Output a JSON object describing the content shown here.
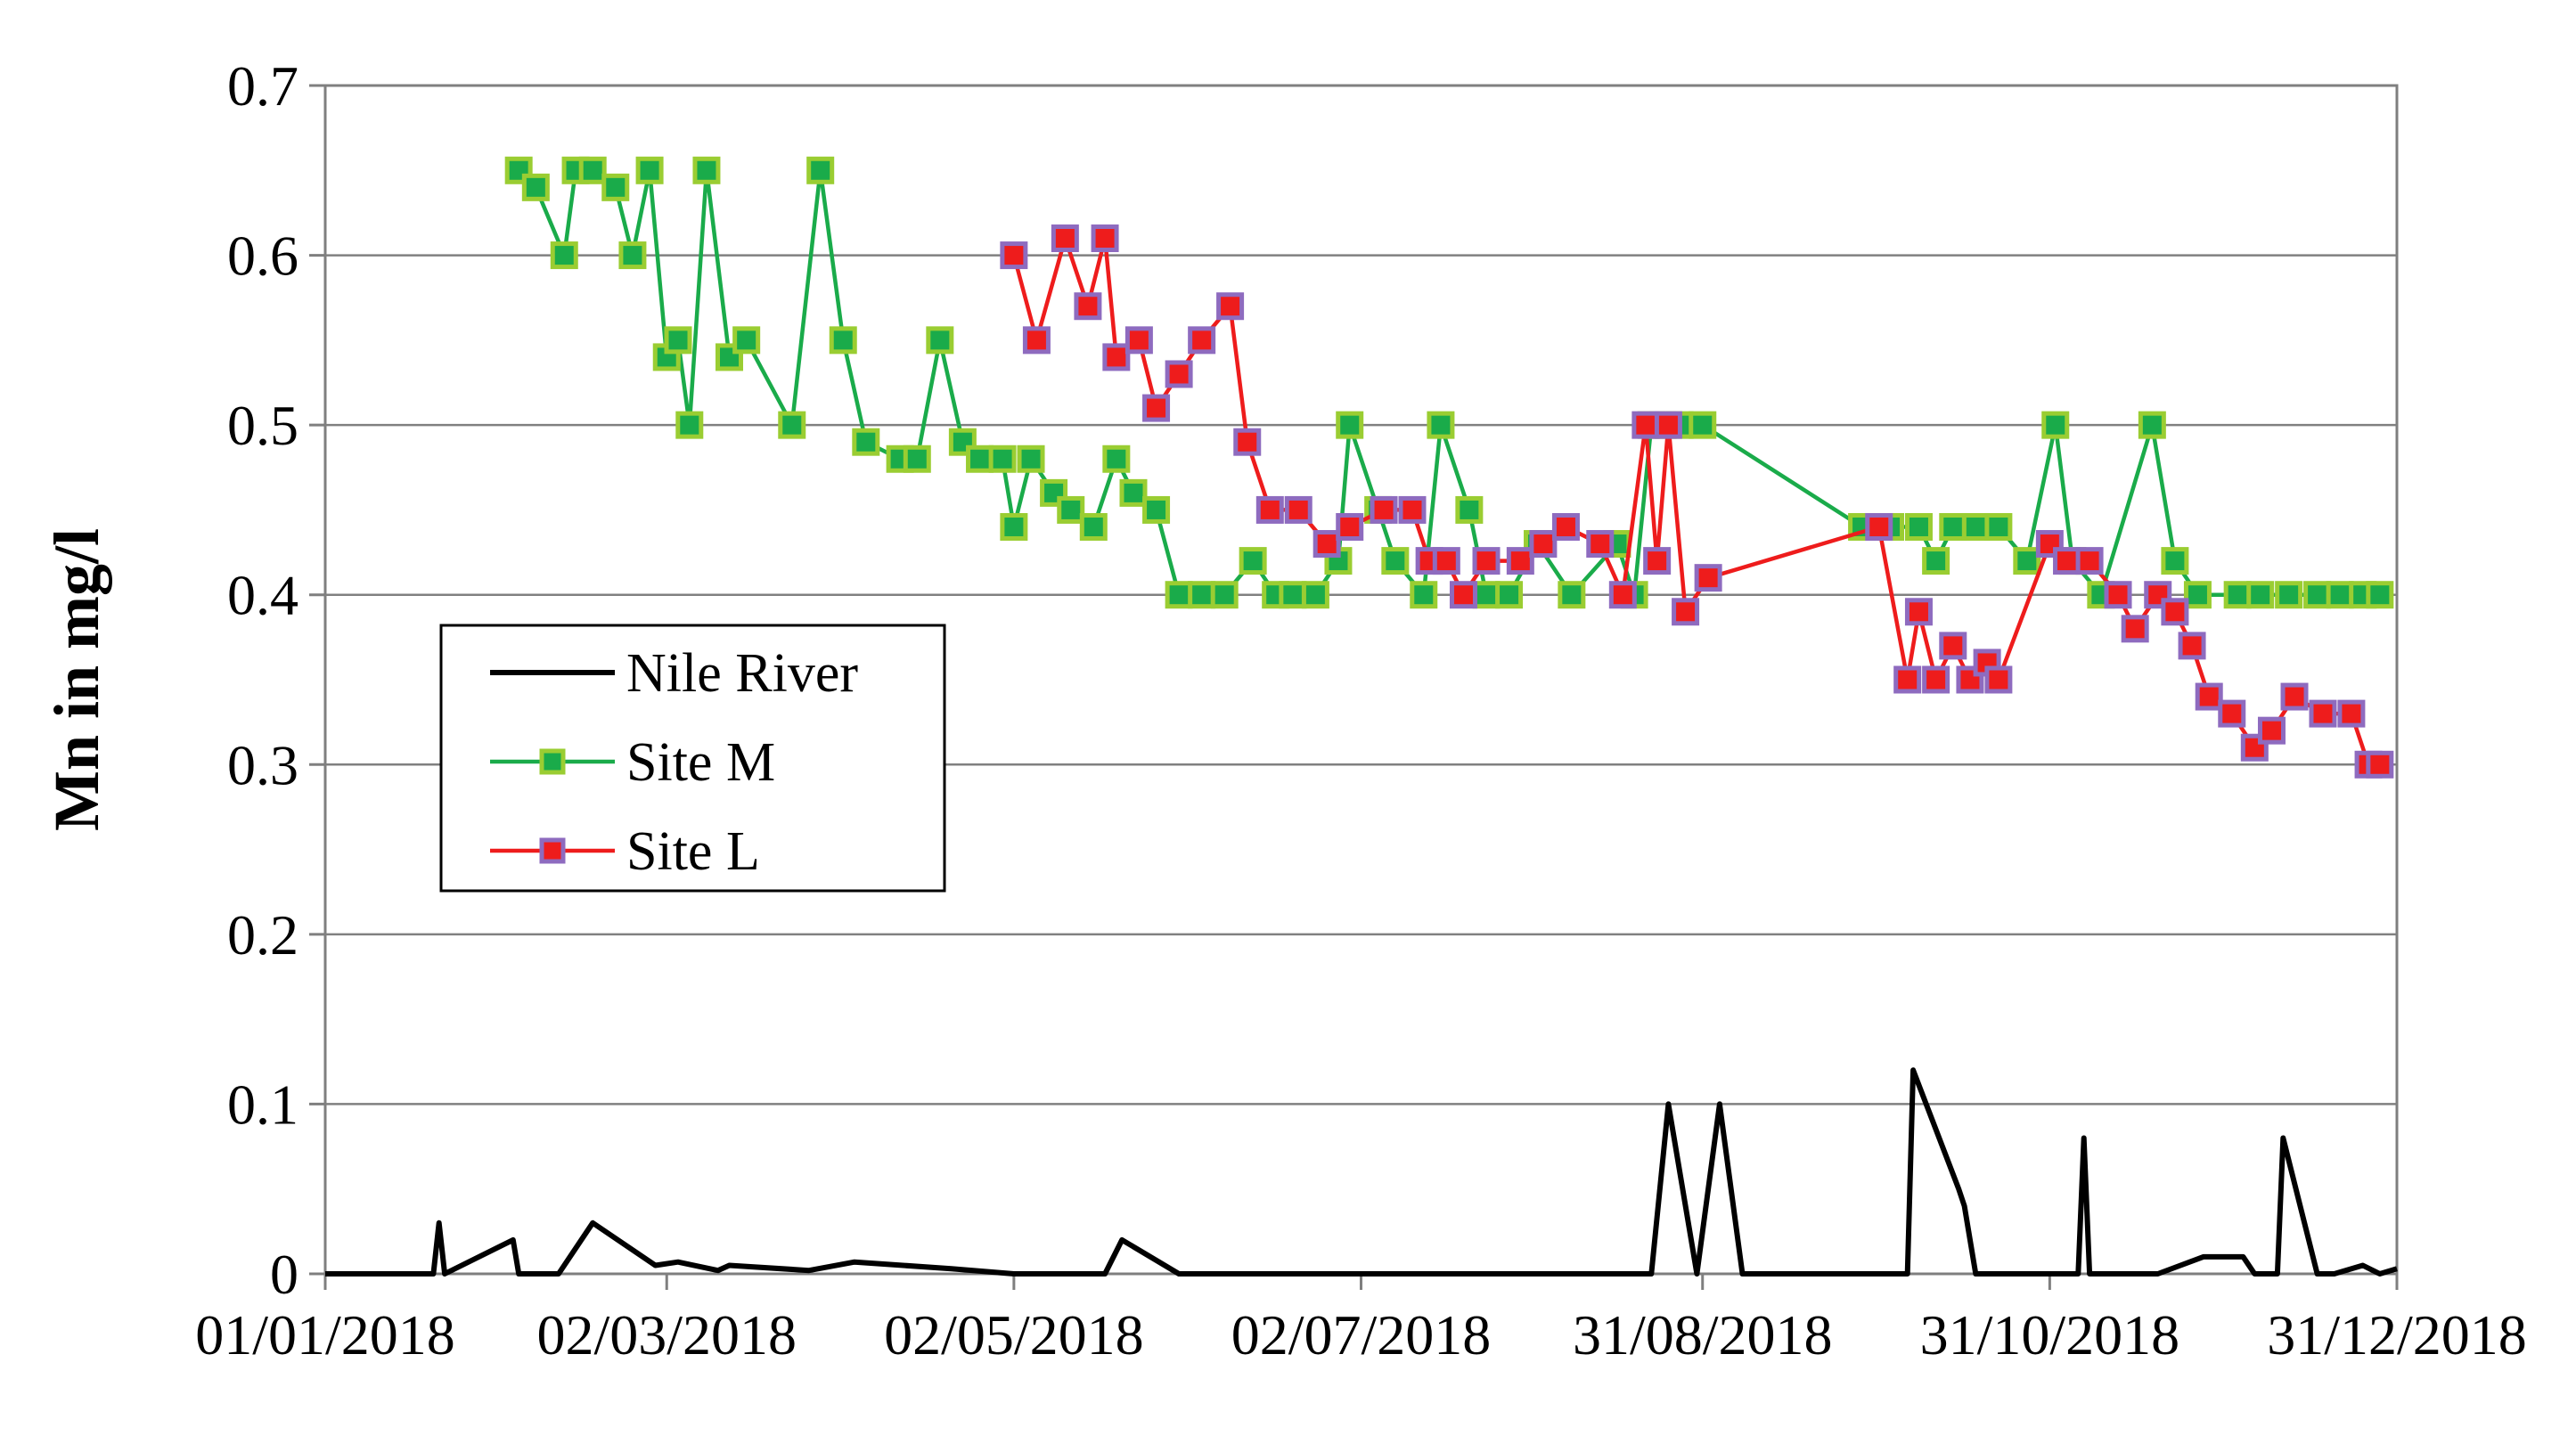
{
  "chart_data": {
    "type": "line",
    "title": "",
    "xlabel": "",
    "ylabel": "Mn  in  mg/l",
    "xlim": [
      "01/01/2018",
      "31/12/2018"
    ],
    "ylim": [
      0,
      0.7
    ],
    "yticks": [
      "0",
      "0.1",
      "0.2",
      "0.3",
      "0.4",
      "0.5",
      "0.6",
      "0.7"
    ],
    "yvals": [
      0,
      0.1,
      0.2,
      0.3,
      0.4,
      0.5,
      0.6,
      0.7
    ],
    "xticks": [
      {
        "label": "01/01/2018",
        "day": 0
      },
      {
        "label": "02/03/2018",
        "day": 60
      },
      {
        "label": "02/05/2018",
        "day": 121
      },
      {
        "label": "02/07/2018",
        "day": 182
      },
      {
        "label": "31/08/2018",
        "day": 242
      },
      {
        "label": "31/10/2018",
        "day": 303
      },
      {
        "label": "31/12/2018",
        "day": 364
      }
    ],
    "grid": "horizontal",
    "legend_position": "middle-left",
    "colors": {
      "nile": "#000000",
      "site_m_line": "#1aab4a",
      "site_m_marker": "#1aab4a",
      "site_m_edge": "#9acd32",
      "site_l_line": "#ee1c1c",
      "site_l_marker": "#ee1c1c",
      "site_l_edge": "#8e6bbf"
    },
    "series": [
      {
        "name": "Nile River",
        "marker": "none",
        "color": "#000000",
        "x": [
          0,
          19,
          20,
          21,
          33,
          34,
          35,
          41,
          47,
          58,
          62,
          69,
          71,
          85,
          93,
          110,
          121,
          137,
          140,
          150,
          160,
          180,
          200,
          225,
          233,
          236,
          241,
          245,
          249,
          250,
          270,
          278,
          279,
          287,
          288,
          290,
          295,
          305,
          308,
          309,
          310,
          315,
          322,
          330,
          337,
          339,
          343,
          344,
          350,
          353,
          358,
          361,
          364
        ],
        "y": [
          0,
          0,
          0.03,
          0,
          0.02,
          0,
          0,
          0,
          0.03,
          0.005,
          0.007,
          0.002,
          0.005,
          0.002,
          0.007,
          0.003,
          0,
          0,
          0.02,
          0,
          0,
          0,
          0,
          0,
          0,
          0.1,
          0,
          0.1,
          0,
          0,
          0,
          0,
          0.12,
          0.05,
          0.04,
          0,
          0,
          0,
          0,
          0.08,
          0,
          0,
          0,
          0.01,
          0.01,
          0,
          0,
          0.08,
          0,
          0,
          0.005,
          0,
          0.003
        ]
      },
      {
        "name": "Site M",
        "marker": "square",
        "color": "#1aab4a",
        "x": [
          34,
          37,
          42,
          44,
          47,
          51,
          54,
          57,
          60,
          62,
          64,
          67,
          71,
          74,
          82,
          87,
          91,
          95,
          101,
          104,
          108,
          112,
          115,
          119,
          121,
          124,
          128,
          131,
          135,
          139,
          142,
          146,
          150,
          154,
          158,
          163,
          167,
          170,
          174,
          178,
          180,
          185,
          188,
          193,
          196,
          201,
          204,
          208,
          213,
          219,
          227,
          230,
          233,
          235,
          238,
          242,
          270,
          275,
          280,
          283,
          286,
          290,
          294,
          299,
          304,
          307,
          312,
          321,
          325,
          329,
          336,
          340,
          345,
          350,
          354,
          358,
          361
        ],
        "y": [
          0.65,
          0.64,
          0.6,
          0.65,
          0.65,
          0.64,
          0.6,
          0.65,
          0.54,
          0.55,
          0.5,
          0.65,
          0.54,
          0.55,
          0.5,
          0.65,
          0.55,
          0.49,
          0.48,
          0.48,
          0.55,
          0.49,
          0.48,
          0.48,
          0.44,
          0.48,
          0.46,
          0.45,
          0.44,
          0.48,
          0.46,
          0.45,
          0.4,
          0.4,
          0.4,
          0.42,
          0.4,
          0.4,
          0.4,
          0.42,
          0.5,
          0.45,
          0.42,
          0.4,
          0.5,
          0.45,
          0.4,
          0.4,
          0.43,
          0.4,
          0.43,
          0.4,
          0.5,
          0.5,
          0.5,
          0.5,
          0.44,
          0.44,
          0.44,
          0.42,
          0.44,
          0.44,
          0.44,
          0.42,
          0.5,
          0.42,
          0.4,
          0.5,
          0.42,
          0.4,
          0.4,
          0.4,
          0.4,
          0.4,
          0.4,
          0.4,
          0.4
        ]
      },
      {
        "name": "Site L",
        "marker": "square",
        "color": "#ee1c1c",
        "x": [
          121,
          125,
          130,
          134,
          137,
          139,
          143,
          146,
          150,
          154,
          159,
          162,
          166,
          171,
          176,
          180,
          186,
          191,
          194,
          197,
          200,
          204,
          210,
          214,
          218,
          224,
          228,
          232,
          234,
          236,
          239,
          243,
          273,
          278,
          280,
          283,
          286,
          289,
          292,
          294,
          303,
          306,
          310,
          315,
          318,
          322,
          325,
          328,
          331,
          335,
          339,
          342,
          346,
          351,
          356,
          359,
          361
        ],
        "y": [
          0.6,
          0.55,
          0.61,
          0.57,
          0.61,
          0.54,
          0.55,
          0.51,
          0.53,
          0.55,
          0.57,
          0.49,
          0.45,
          0.45,
          0.43,
          0.44,
          0.45,
          0.45,
          0.42,
          0.42,
          0.4,
          0.42,
          0.42,
          0.43,
          0.44,
          0.43,
          0.4,
          0.5,
          0.42,
          0.5,
          0.39,
          0.41,
          0.44,
          0.35,
          0.39,
          0.35,
          0.37,
          0.35,
          0.36,
          0.35,
          0.43,
          0.42,
          0.42,
          0.4,
          0.38,
          0.4,
          0.39,
          0.37,
          0.34,
          0.33,
          0.31,
          0.32,
          0.34,
          0.33,
          0.33,
          0.3,
          0.3
        ]
      }
    ]
  }
}
